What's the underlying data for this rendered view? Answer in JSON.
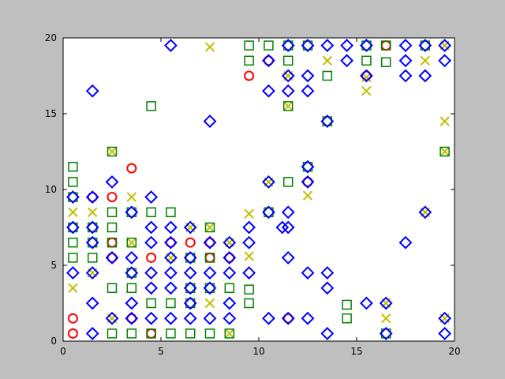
{
  "chart_data": {
    "type": "scatter",
    "title": "",
    "xlabel": "",
    "ylabel": "",
    "xlim": [
      0,
      20
    ],
    "ylim": [
      0,
      20
    ],
    "xticks": [
      "0",
      "5",
      "10",
      "15",
      "20"
    ],
    "yticks": [
      "0",
      "5",
      "10",
      "15",
      "20"
    ],
    "grid": false,
    "legend": "none",
    "series": [
      {
        "marker": "circle",
        "color": "#ff0000",
        "points": [
          [
            0.5,
            0.5
          ],
          [
            0.5,
            1.5
          ],
          [
            1.5,
            9.5
          ],
          [
            2.5,
            9.5
          ],
          [
            3.5,
            11.4
          ],
          [
            2.5,
            5.5
          ],
          [
            4.5,
            5.5
          ],
          [
            4.5,
            0.5
          ],
          [
            5.5,
            6.5
          ],
          [
            6.5,
            6.5
          ],
          [
            7.5,
            6.5
          ],
          [
            7.5,
            5.5
          ],
          [
            8.5,
            5.5
          ],
          [
            9.5,
            17.5
          ],
          [
            10.5,
            18.5
          ],
          [
            11.5,
            1.5
          ],
          [
            16.5,
            19.5
          ],
          [
            15.5,
            17.5
          ],
          [
            12.5,
            10.5
          ],
          [
            2.5,
            6.5
          ],
          [
            3.5,
            1.5
          ]
        ]
      },
      {
        "marker": "x",
        "color": "#bfbf00",
        "points": [
          [
            0.5,
            3.5
          ],
          [
            0.5,
            8.5
          ],
          [
            1.5,
            8.5
          ],
          [
            2.5,
            12.5
          ],
          [
            3.5,
            9.5
          ],
          [
            1.5,
            4.5
          ],
          [
            2.5,
            1.5
          ],
          [
            7.5,
            19.4
          ],
          [
            9.5,
            8.4
          ],
          [
            9.5,
            5.6
          ],
          [
            10.5,
            10.5
          ],
          [
            11.5,
            15.5
          ],
          [
            12.5,
            9.6
          ],
          [
            15.5,
            16.5
          ],
          [
            15.5,
            17.4
          ],
          [
            16.5,
            1.5
          ],
          [
            16.5,
            2.5
          ],
          [
            18.5,
            18.5
          ],
          [
            18.5,
            8.5
          ],
          [
            19.5,
            14.5
          ],
          [
            19.5,
            1.5
          ],
          [
            19.5,
            12.5
          ],
          [
            19.5,
            19.5
          ],
          [
            7.5,
            2.5
          ],
          [
            8.5,
            6.5
          ],
          [
            3.5,
            6.5
          ],
          [
            5.5,
            5.5
          ],
          [
            6.5,
            7.5
          ],
          [
            7.5,
            7.5
          ],
          [
            8.5,
            0.5
          ],
          [
            11.5,
            17.5
          ],
          [
            13.5,
            18.5
          ]
        ]
      },
      {
        "marker": "square",
        "color": "#008000",
        "points": [
          [
            0.5,
            11.5
          ],
          [
            0.5,
            10.5
          ],
          [
            0.5,
            9.5
          ],
          [
            0.5,
            7.5
          ],
          [
            0.5,
            6.5
          ],
          [
            0.5,
            5.5
          ],
          [
            1.5,
            7.5
          ],
          [
            1.5,
            6.5
          ],
          [
            1.5,
            5.5
          ],
          [
            2.5,
            12.5
          ],
          [
            2.5,
            8.5
          ],
          [
            2.5,
            7.5
          ],
          [
            2.5,
            6.5
          ],
          [
            2.5,
            3.5
          ],
          [
            2.5,
            0.5
          ],
          [
            3.5,
            8.5
          ],
          [
            3.5,
            6.5
          ],
          [
            3.5,
            4.5
          ],
          [
            3.5,
            3.5
          ],
          [
            3.5,
            0.5
          ],
          [
            4.5,
            15.5
          ],
          [
            4.5,
            8.5
          ],
          [
            4.5,
            2.5
          ],
          [
            4.5,
            0.5
          ],
          [
            5.5,
            8.5
          ],
          [
            5.5,
            2.5
          ],
          [
            5.5,
            0.5
          ],
          [
            6.5,
            5.5
          ],
          [
            6.5,
            3.5
          ],
          [
            6.5,
            2.5
          ],
          [
            6.5,
            0.5
          ],
          [
            7.5,
            7.5
          ],
          [
            7.5,
            5.5
          ],
          [
            7.5,
            3.5
          ],
          [
            7.5,
            0.5
          ],
          [
            8.5,
            3.5
          ],
          [
            8.5,
            0.5
          ],
          [
            9.5,
            19.5
          ],
          [
            9.5,
            18.5
          ],
          [
            9.5,
            3.4
          ],
          [
            9.5,
            2.5
          ],
          [
            10.5,
            19.5
          ],
          [
            10.5,
            8.5
          ],
          [
            11.5,
            19.5
          ],
          [
            11.5,
            18.5
          ],
          [
            11.5,
            10.5
          ],
          [
            11.5,
            15.5
          ],
          [
            12.5,
            19.5
          ],
          [
            12.5,
            11.5
          ],
          [
            13.5,
            17.5
          ],
          [
            13.5,
            14.5
          ],
          [
            14.5,
            2.4
          ],
          [
            14.5,
            1.5
          ],
          [
            15.5,
            19.5
          ],
          [
            15.5,
            18.5
          ],
          [
            16.5,
            19.5
          ],
          [
            16.5,
            18.4
          ],
          [
            16.5,
            0.5
          ],
          [
            18.5,
            19.5
          ],
          [
            19.5,
            12.5
          ]
        ]
      },
      {
        "marker": "diamond",
        "color": "#0000ff",
        "points": [
          [
            0.5,
            9.5
          ],
          [
            0.5,
            7.5
          ],
          [
            0.5,
            4.5
          ],
          [
            1.5,
            16.5
          ],
          [
            1.5,
            9.5
          ],
          [
            1.5,
            7.5
          ],
          [
            1.5,
            6.5
          ],
          [
            1.5,
            4.5
          ],
          [
            1.5,
            2.5
          ],
          [
            1.5,
            0.5
          ],
          [
            2.5,
            10.5
          ],
          [
            2.5,
            5.5
          ],
          [
            2.5,
            1.5
          ],
          [
            3.5,
            8.5
          ],
          [
            3.5,
            5.5
          ],
          [
            3.5,
            4.5
          ],
          [
            3.5,
            2.5
          ],
          [
            3.5,
            1.5
          ],
          [
            4.5,
            9.5
          ],
          [
            4.5,
            7.5
          ],
          [
            4.5,
            6.5
          ],
          [
            4.5,
            4.5
          ],
          [
            4.5,
            3.5
          ],
          [
            4.5,
            1.5
          ],
          [
            5.5,
            19.5
          ],
          [
            5.5,
            7.5
          ],
          [
            5.5,
            6.5
          ],
          [
            5.5,
            5.5
          ],
          [
            5.5,
            4.5
          ],
          [
            5.5,
            3.5
          ],
          [
            5.5,
            1.5
          ],
          [
            6.5,
            7.5
          ],
          [
            6.5,
            5.5
          ],
          [
            6.5,
            4.5
          ],
          [
            6.5,
            3.5
          ],
          [
            6.5,
            2.5
          ],
          [
            6.5,
            1.5
          ],
          [
            7.5,
            14.5
          ],
          [
            7.5,
            6.5
          ],
          [
            7.5,
            4.5
          ],
          [
            7.5,
            3.5
          ],
          [
            7.5,
            1.5
          ],
          [
            8.5,
            6.5
          ],
          [
            8.5,
            5.5
          ],
          [
            8.5,
            4.5
          ],
          [
            8.5,
            2.5
          ],
          [
            8.5,
            1.5
          ],
          [
            9.5,
            7.5
          ],
          [
            9.5,
            6.5
          ],
          [
            9.5,
            4.5
          ],
          [
            10.5,
            18.5
          ],
          [
            10.5,
            16.5
          ],
          [
            10.5,
            10.5
          ],
          [
            10.5,
            8.5
          ],
          [
            10.5,
            1.5
          ],
          [
            11.5,
            19.5
          ],
          [
            11.5,
            17.5
          ],
          [
            11.5,
            16.5
          ],
          [
            11.5,
            8.5
          ],
          [
            11.5,
            7.5
          ],
          [
            11.5,
            5.5
          ],
          [
            11.5,
            1.5
          ],
          [
            12.5,
            19.5
          ],
          [
            12.5,
            17.5
          ],
          [
            12.5,
            16.5
          ],
          [
            12.5,
            11.5
          ],
          [
            12.5,
            10.5
          ],
          [
            12.5,
            4.5
          ],
          [
            12.5,
            1.5
          ],
          [
            13.5,
            19.5
          ],
          [
            13.5,
            14.5
          ],
          [
            13.5,
            4.5
          ],
          [
            13.5,
            3.5
          ],
          [
            13.5,
            0.5
          ],
          [
            14.5,
            19.5
          ],
          [
            14.5,
            18.5
          ],
          [
            15.5,
            19.5
          ],
          [
            15.5,
            17.5
          ],
          [
            15.5,
            2.5
          ],
          [
            16.5,
            2.5
          ],
          [
            16.5,
            0.5
          ],
          [
            17.5,
            19.5
          ],
          [
            17.5,
            18.5
          ],
          [
            17.5,
            17.5
          ],
          [
            17.5,
            6.5
          ],
          [
            18.5,
            19.5
          ],
          [
            18.5,
            17.5
          ],
          [
            18.5,
            8.5
          ],
          [
            19.5,
            19.5
          ],
          [
            19.5,
            18.5
          ],
          [
            19.5,
            1.5
          ],
          [
            19.5,
            0.5
          ],
          [
            11.2,
            7.5
          ]
        ]
      }
    ]
  }
}
